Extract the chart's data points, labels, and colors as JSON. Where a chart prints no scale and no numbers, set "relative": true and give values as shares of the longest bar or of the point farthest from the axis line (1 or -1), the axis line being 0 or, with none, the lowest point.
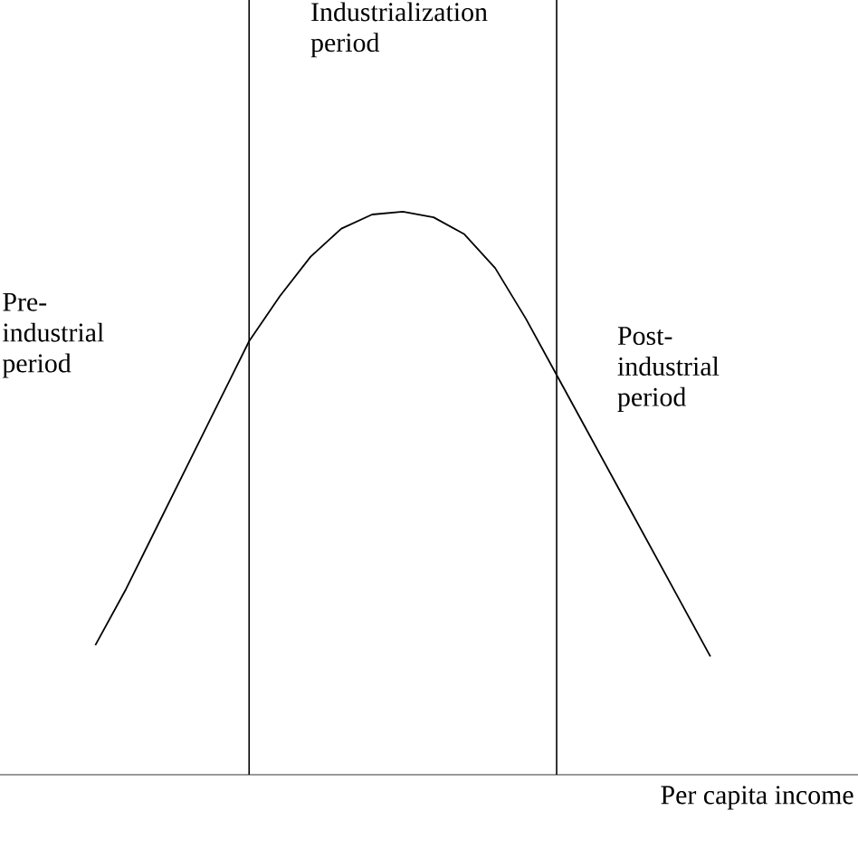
{
  "chart_data": {
    "type": "line",
    "relative": true,
    "categories": [
      null,
      null,
      null,
      null,
      null,
      null,
      null,
      null,
      null,
      null,
      null,
      null,
      null,
      null,
      null,
      null,
      null,
      null,
      null,
      null,
      null
    ],
    "series": [
      {
        "color": "#000000",
        "values": [
          0.23,
          0.33,
          0.44,
          0.55,
          0.66,
          0.77,
          0.85,
          0.92,
          0.97,
          0.995,
          1,
          0.99,
          0.96,
          0.9,
          0.81,
          0.71,
          0.61,
          0.51,
          0.41,
          0.31,
          0.21
        ]
      }
    ],
    "xlabel": "Per capita income",
    "annotations": [
      "Pre-industrial period",
      "Industrialization period",
      "Post-industrial period"
    ],
    "marker": "none",
    "line_style": "solid"
  }
}
